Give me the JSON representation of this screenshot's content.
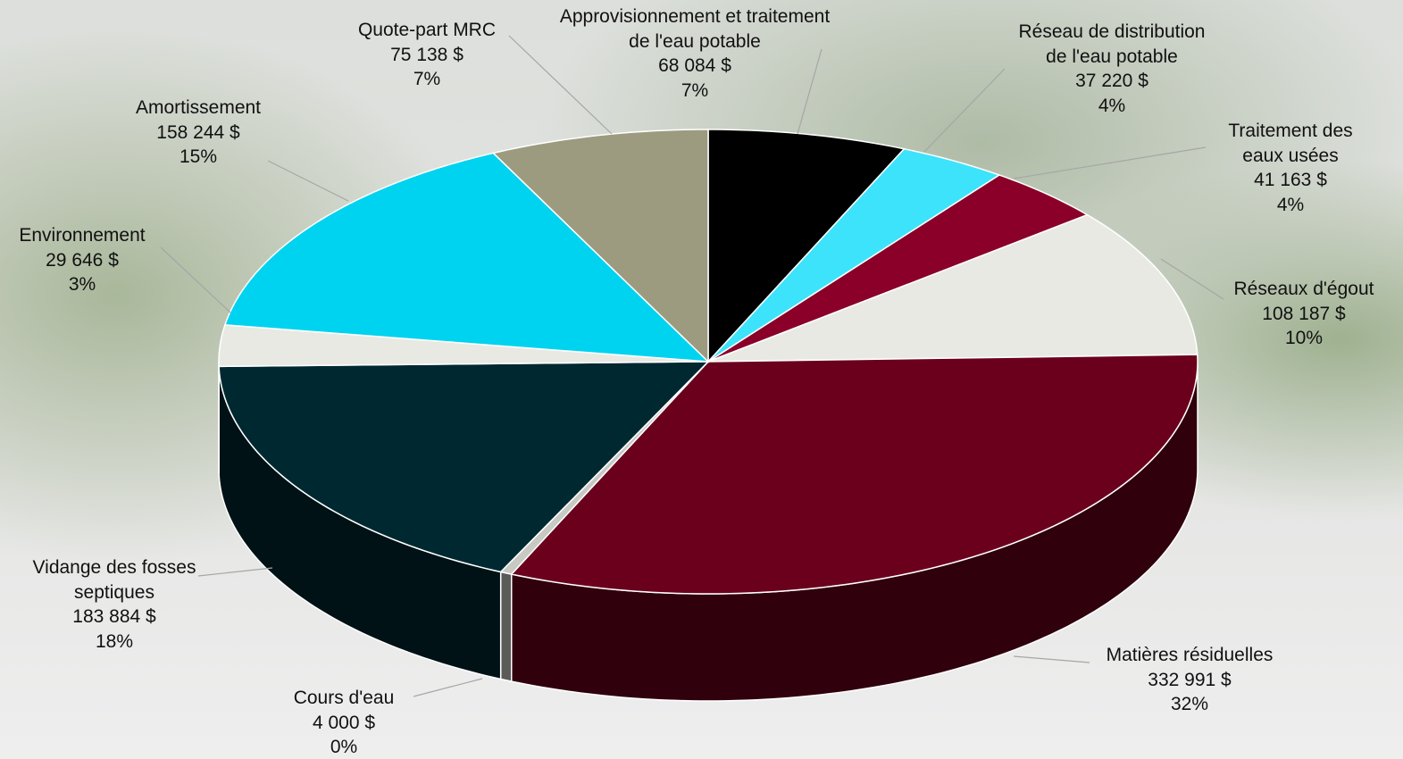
{
  "chart_data": {
    "type": "pie3d",
    "categories": [
      "Approvisionnement et traitement de l'eau potable",
      "Réseau de distribution de l'eau potable",
      "Traitement des eaux usées",
      "Réseaux d'égout",
      "Matières résiduelles",
      "Cours d'eau",
      "Vidange des fosses septiques",
      "Environnement",
      "Amortissement",
      "Quote-part MRC"
    ],
    "values": [
      68084,
      37220,
      41163,
      108187,
      332991,
      4000,
      183884,
      29646,
      158244,
      75138
    ],
    "value_labels": [
      "68 084  $",
      "37 220  $",
      "41 163  $",
      "108 187  $",
      "332 991  $",
      "4 000  $",
      "183 884  $",
      "29 646  $",
      "158 244  $",
      "75 138  $"
    ],
    "percent_labels": [
      "7%",
      "4%",
      "4%",
      "10%",
      "32%",
      "0%",
      "18%",
      "3%",
      "15%",
      "7%"
    ],
    "colors": [
      "#000000",
      "#3de3fa",
      "#8a0029",
      "#e9e9e4",
      "#6b001d",
      "#c9c9c4",
      "#002830",
      "#e9e9e4",
      "#00d3ef",
      "#9c9b80"
    ]
  }
}
